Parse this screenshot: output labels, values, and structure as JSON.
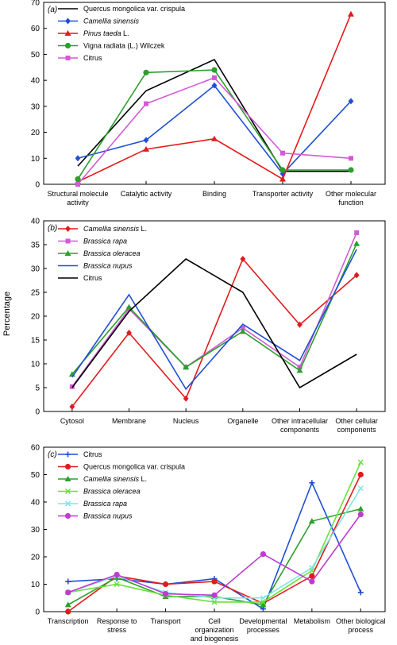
{
  "ylabel": "Percentage",
  "chart_data": [
    {
      "type": "line",
      "panel_label": "(a)",
      "categories": [
        "Structural molecule activity",
        "Catalytic activity",
        "Binding",
        "Transporter activity",
        "Other molecular function"
      ],
      "ylim": [
        0,
        70
      ],
      "yticks": [
        0,
        10,
        20,
        30,
        40,
        50,
        60,
        70
      ],
      "legend_position": "top-left",
      "series": [
        {
          "name": "Quercus mongolica var. crispula",
          "italic_prefix": "",
          "italic": false,
          "color": "#000000",
          "marker": "none",
          "values": [
            7,
            36,
            48,
            5,
            5
          ]
        },
        {
          "name": "Camellia sinensis",
          "italic_prefix": "",
          "italic": true,
          "color": "#1f4fd6",
          "marker": "diamond",
          "values": [
            10,
            17,
            38,
            4,
            32
          ]
        },
        {
          "name": "Pinus taeda L.",
          "italic_prefix": "Pinus taeda",
          "italic": false,
          "color": "#e31a1c",
          "marker": "triangle",
          "values": [
            1,
            13.5,
            17.5,
            2,
            65.5
          ]
        },
        {
          "name": "Vigna radiata (L.) Wilczek",
          "italic_prefix": "",
          "italic": false,
          "color": "#2ca02c",
          "marker": "circle",
          "values": [
            2,
            43,
            44,
            5.5,
            5.5
          ]
        },
        {
          "name": "Citrus",
          "italic_prefix": "",
          "italic": false,
          "color": "#d35ad6",
          "marker": "square",
          "values": [
            0,
            31,
            41,
            12,
            10
          ]
        }
      ]
    },
    {
      "type": "line",
      "panel_label": "(b)",
      "categories": [
        "Cytosol",
        "Membrane",
        "Nucleus",
        "Organelle",
        "Other intracellular components",
        "Other cellular components"
      ],
      "ylim": [
        0,
        40
      ],
      "yticks": [
        0,
        5,
        10,
        15,
        20,
        25,
        30,
        35,
        40
      ],
      "legend_position": "top-left",
      "series": [
        {
          "name": "Camellia sinensis L.",
          "italic_prefix": "Camellia sinensis",
          "italic": false,
          "color": "#e31a1c",
          "marker": "diamond",
          "values": [
            1,
            16.5,
            2.7,
            32,
            18.2,
            28.6
          ]
        },
        {
          "name": "Brassica rapa",
          "italic_prefix": "",
          "italic": true,
          "color": "#d35ad6",
          "marker": "square",
          "values": [
            5.2,
            21.5,
            9.3,
            17.5,
            9.3,
            37.5
          ]
        },
        {
          "name": "Brassica oleracea",
          "italic_prefix": "",
          "italic": true,
          "color": "#2ca02c",
          "marker": "triangle",
          "values": [
            7.8,
            21.9,
            9.3,
            16.8,
            8.6,
            35.2
          ]
        },
        {
          "name": "Brassica nupus",
          "italic_prefix": "",
          "italic": true,
          "color": "#1f4fd6",
          "marker": "none",
          "values": [
            7.2,
            24.5,
            4.7,
            18.3,
            10.7,
            34
          ]
        },
        {
          "name": "Citrus",
          "italic_prefix": "",
          "italic": false,
          "color": "#000000",
          "marker": "none",
          "values": [
            5,
            21,
            32,
            25,
            5,
            12
          ]
        }
      ]
    },
    {
      "type": "line",
      "panel_label": "(c)",
      "categories": [
        "Transcription",
        "Response to stress",
        "Transport",
        "Cell organization and biogenesis",
        "Developmental processes",
        "Metabolism",
        "Other biological process"
      ],
      "ylim": [
        0,
        60
      ],
      "yticks": [
        0,
        10,
        20,
        30,
        40,
        50,
        60
      ],
      "legend_position": "top-left",
      "series": [
        {
          "name": "Citrus",
          "italic_prefix": "",
          "italic": false,
          "color": "#1f4fd6",
          "marker": "plus",
          "values": [
            11,
            12,
            10,
            12,
            1,
            47,
            7
          ]
        },
        {
          "name": "Quercus mongolica var. crispula",
          "italic_prefix": "",
          "italic": false,
          "color": "#e31a1c",
          "marker": "circle",
          "values": [
            0,
            13,
            10,
            11,
            3,
            13,
            50
          ]
        },
        {
          "name": "Camellia sinensis L.",
          "italic_prefix": "Camellia sinensis",
          "italic": false,
          "color": "#2ca02c",
          "marker": "triangle",
          "values": [
            2.5,
            12.5,
            5.5,
            5.5,
            2.5,
            33,
            37.5
          ]
        },
        {
          "name": "Brassica oleracea",
          "italic_prefix": "",
          "italic": true,
          "color": "#66e23a",
          "marker": "cross",
          "values": [
            7,
            10,
            6,
            3.5,
            3.5,
            15,
            54.5
          ]
        },
        {
          "name": "Brassica rapa",
          "italic_prefix": "",
          "italic": true,
          "color": "#7fe6e6",
          "marker": "cross",
          "values": [
            7,
            13,
            7,
            5,
            5,
            16,
            45
          ]
        },
        {
          "name": "Brassica nupus",
          "italic_prefix": "",
          "italic": true,
          "color": "#c03ad0",
          "marker": "circle",
          "values": [
            7,
            13.5,
            6.5,
            6,
            21,
            11,
            35.5
          ]
        }
      ]
    }
  ]
}
